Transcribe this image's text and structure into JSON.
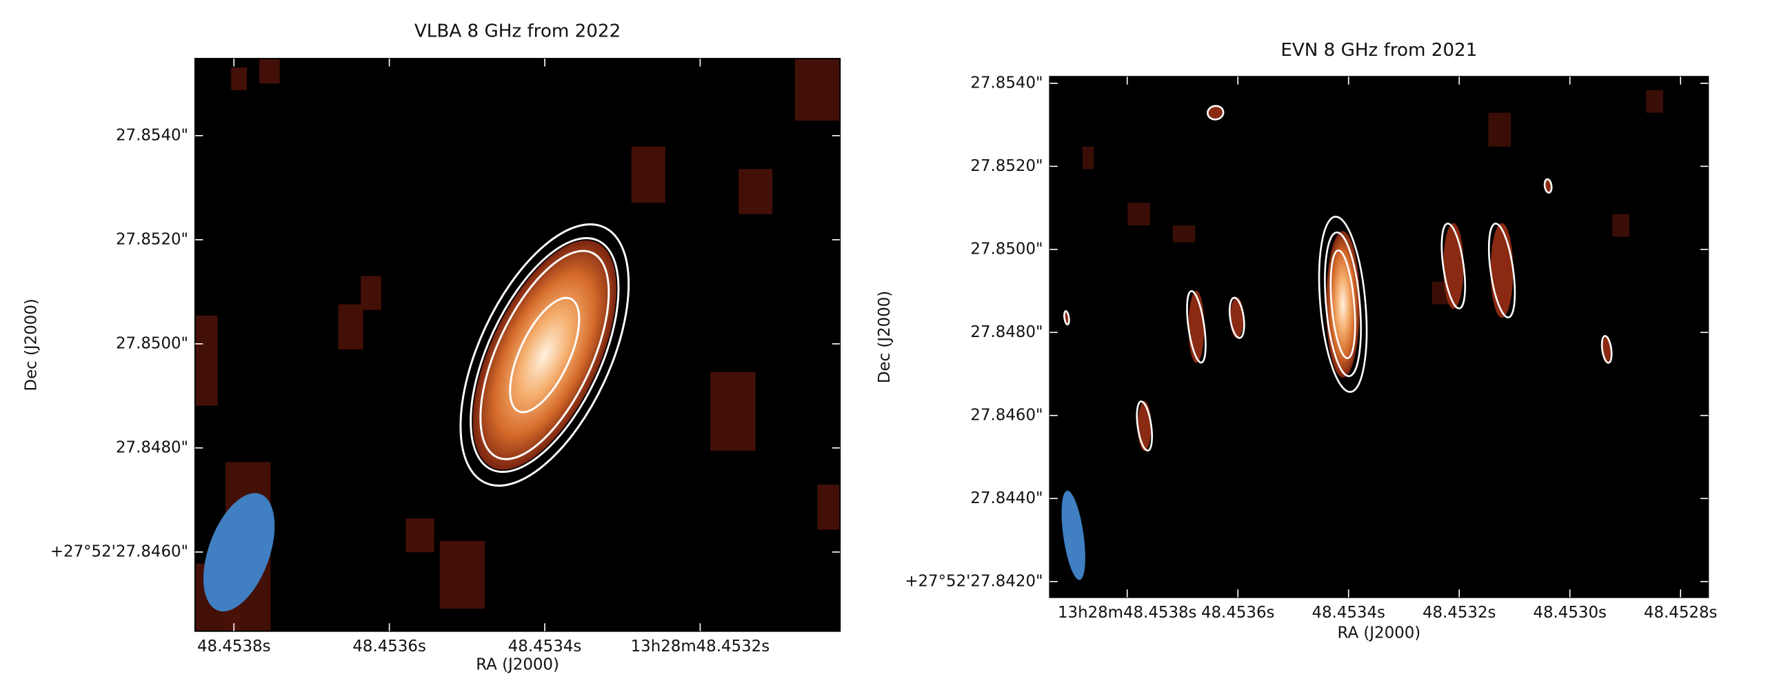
{
  "chart_data": [
    {
      "type": "image",
      "title": "VLBA 8 GHz from 2022",
      "xlabel": "RA (J2000)",
      "ylabel": "Dec (J2000)",
      "xlim": [
        48.45385,
        48.45302
      ],
      "ylim": [
        27.84448,
        27.85548
      ],
      "xticks": [
        {
          "value": 48.4538,
          "label": "48.4538s"
        },
        {
          "value": 48.4536,
          "label": "48.4536s"
        },
        {
          "value": 48.4534,
          "label": "48.4534s"
        },
        {
          "value": 48.4532,
          "label": "13h28m48.4532s"
        }
      ],
      "yticks": [
        {
          "value": 27.846,
          "label": "+27°52'27.8460\""
        },
        {
          "value": 27.848,
          "label": "27.8480\""
        },
        {
          "value": 27.85,
          "label": "27.8500\""
        },
        {
          "value": 27.852,
          "label": "27.8520\""
        },
        {
          "value": 27.854,
          "label": "27.8540\""
        }
      ]
    },
    {
      "type": "image",
      "title": "EVN 8 GHz from 2021",
      "xlabel": "RA (J2000)",
      "ylabel": "Dec (J2000)",
      "xlim": [
        48.45394,
        48.45275
      ],
      "ylim": [
        27.84162,
        27.85416
      ],
      "xticks": [
        {
          "value": 48.4538,
          "label": "13h28m48.4538s"
        },
        {
          "value": 48.4536,
          "label": "48.4536s"
        },
        {
          "value": 48.4534,
          "label": "48.4534s"
        },
        {
          "value": 48.4532,
          "label": "48.4532s"
        },
        {
          "value": 48.453,
          "label": "48.4530s"
        },
        {
          "value": 48.4528,
          "label": "48.4528s"
        }
      ],
      "yticks": [
        {
          "value": 27.842,
          "label": "+27°52'27.8420\""
        },
        {
          "value": 27.844,
          "label": "27.8440\""
        },
        {
          "value": 27.846,
          "label": "27.8460\""
        },
        {
          "value": 27.848,
          "label": "27.8480\""
        },
        {
          "value": 27.85,
          "label": "27.8500\""
        },
        {
          "value": 27.852,
          "label": "27.8520\""
        },
        {
          "value": 27.854,
          "label": "27.8540\""
        }
      ]
    }
  ]
}
